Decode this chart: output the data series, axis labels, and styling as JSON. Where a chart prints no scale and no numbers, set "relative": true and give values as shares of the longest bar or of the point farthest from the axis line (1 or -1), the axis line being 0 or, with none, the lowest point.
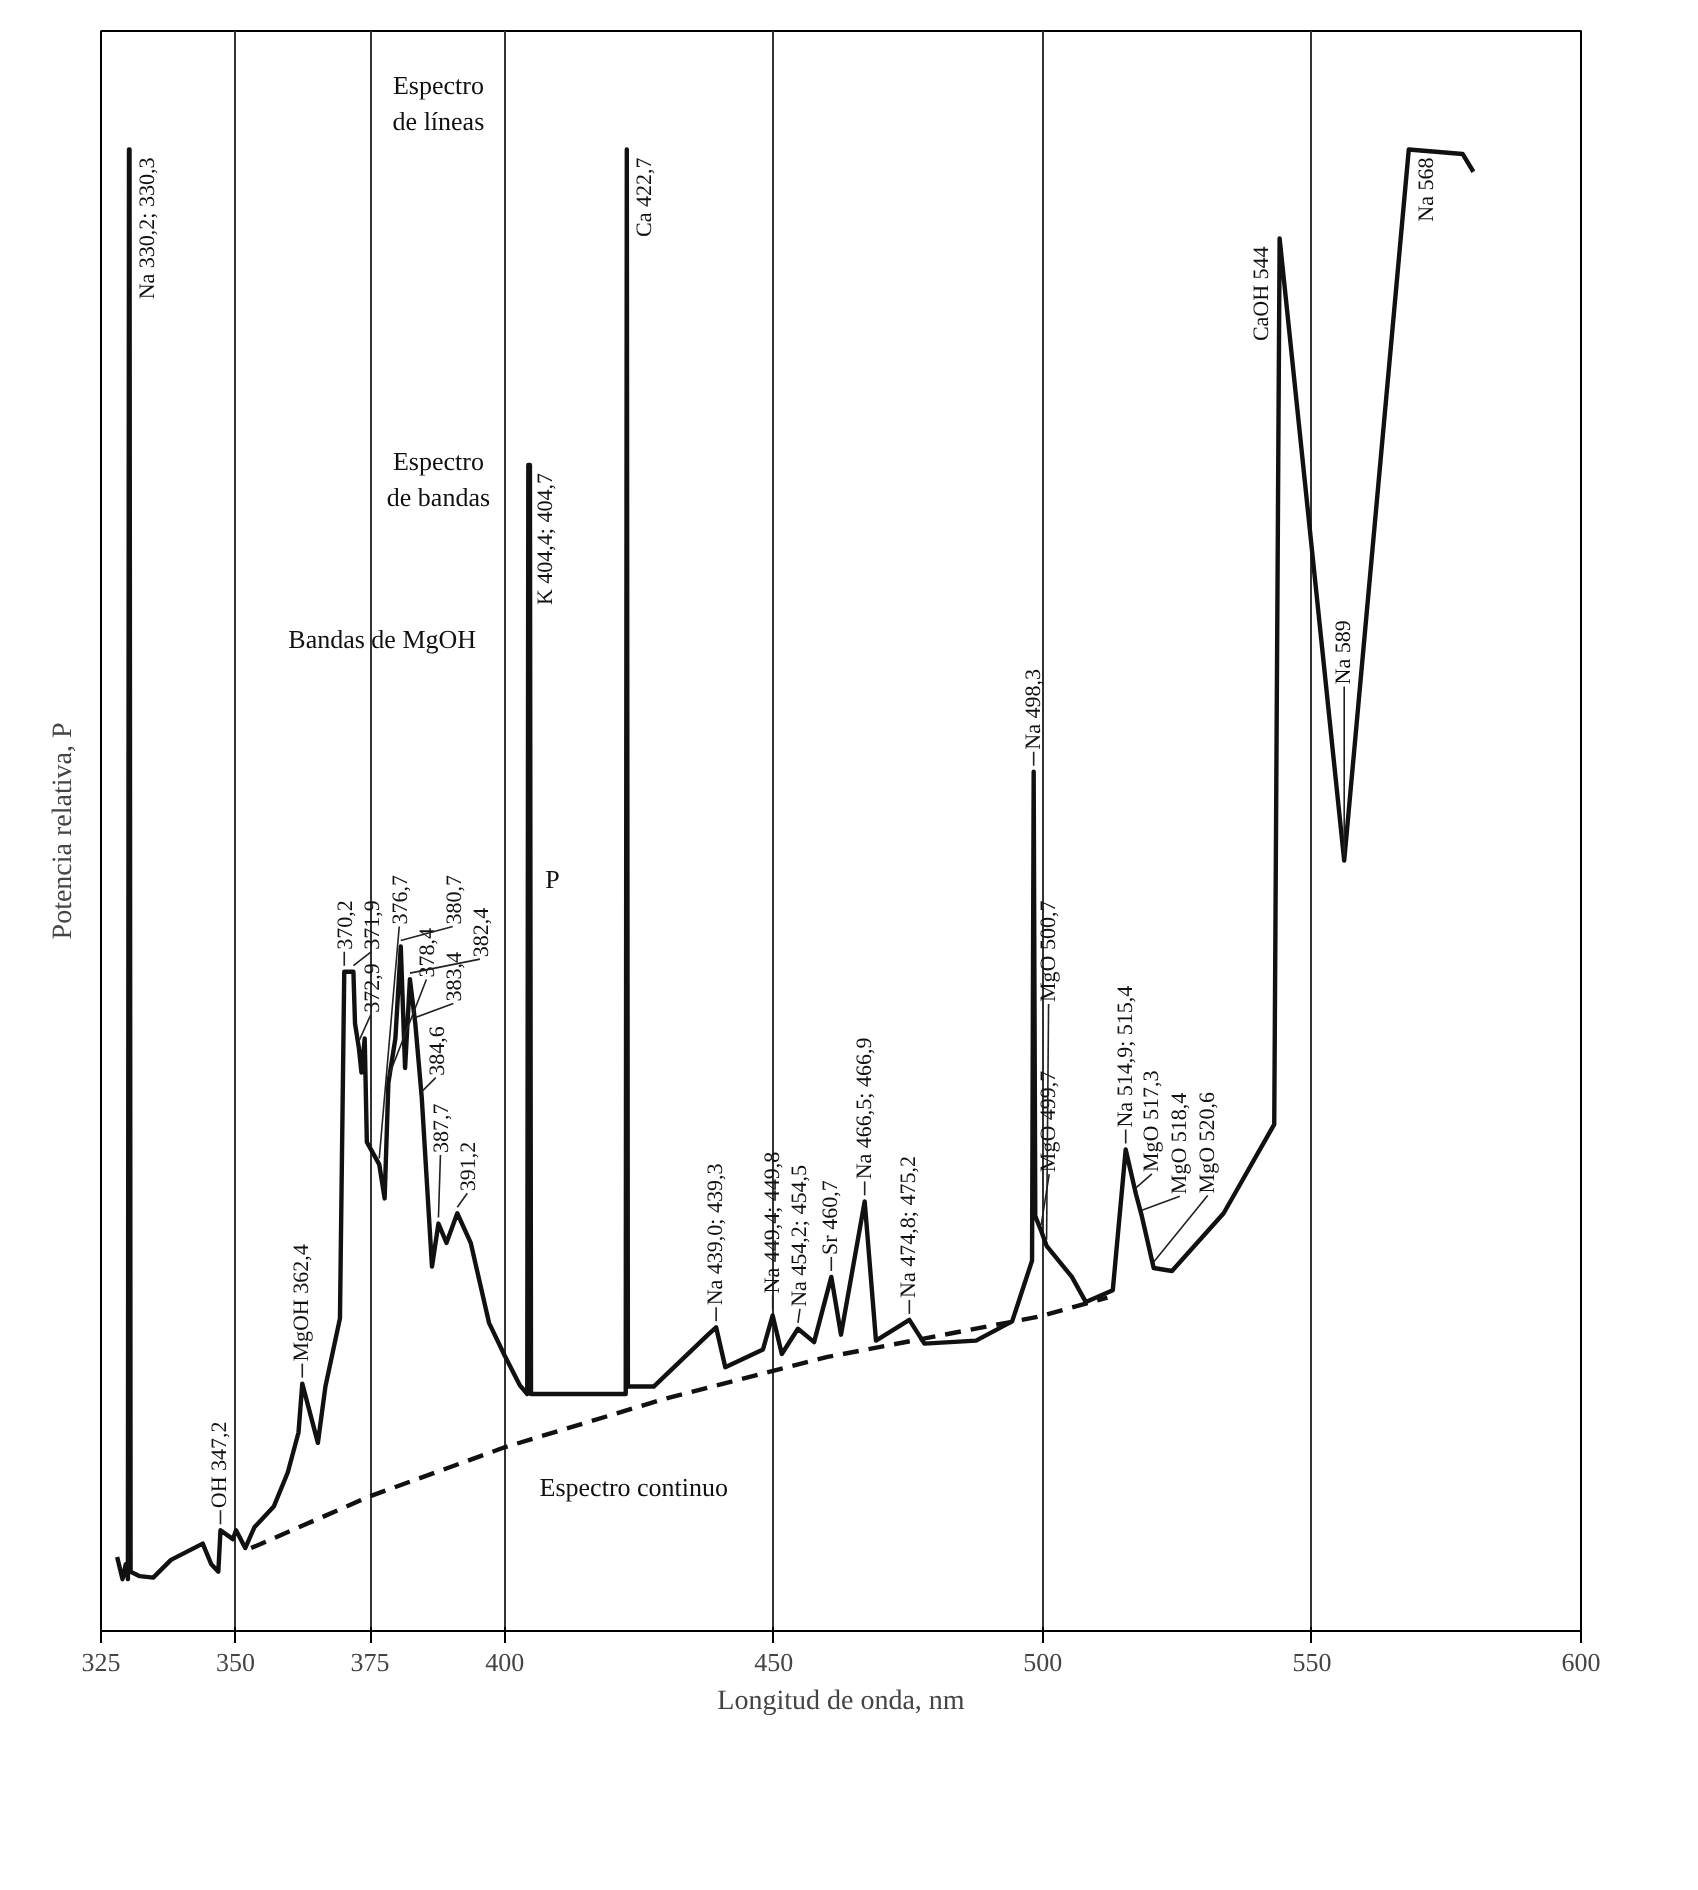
{
  "chart_data": {
    "type": "line",
    "relative": true,
    "xlabel": "Longitud de onda, nm",
    "ylabel": "Potencia relativa, P",
    "xlim": [
      325,
      600
    ],
    "xticks": [
      325,
      350,
      375,
      400,
      450,
      500,
      550,
      600
    ],
    "grid": "x",
    "tick_labels": "x",
    "marker": "none",
    "series": [
      {
        "color": "#111111",
        "line_style": "solid",
        "x": [
          328.0,
          329.0,
          329.6,
          330.0,
          330.2,
          330.3,
          330.5,
          332.2,
          334.7,
          338.0,
          343.9,
          345.5,
          346.8,
          347.2,
          349.5,
          350.1,
          351.8,
          353.5,
          357.1,
          359.7,
          361.7,
          362.4,
          365.3,
          366.7,
          369.4,
          370.2,
          371.9,
          372.2,
          372.9,
          373.4,
          374.0,
          374.4,
          376.7,
          377.7,
          378.4,
          379.7,
          380.7,
          381.5,
          382.4,
          383.4,
          384.6,
          386.5,
          387.7,
          389.2,
          391.2,
          393.7,
          397.1,
          400.0,
          402.8,
          404.2,
          404.4,
          404.7,
          404.9,
          422.5,
          422.7,
          422.9,
          427.7,
          437.8,
          439.3,
          441.0,
          448.0,
          449.8,
          451.5,
          454.5,
          457.5,
          460.7,
          462.5,
          466.9,
          469.0,
          475.2,
          478.0,
          487.6,
          494.3,
          498.0,
          498.3,
          498.6,
          499.7,
          500.7,
          505.4,
          508.0,
          513.0,
          515.4,
          517.3,
          518.4,
          520.6,
          524.0,
          533.6,
          543.0,
          544.0,
          556.0,
          568.0,
          578.0,
          580.0
        ],
        "values": [
          0.05,
          0.035,
          0.045,
          0.035,
          1.0,
          1.0,
          0.04,
          0.037,
          0.036,
          0.048,
          0.059,
          0.045,
          0.04,
          0.068,
          0.062,
          0.068,
          0.056,
          0.07,
          0.084,
          0.107,
          0.134,
          0.167,
          0.127,
          0.165,
          0.211,
          0.445,
          0.445,
          0.41,
          0.394,
          0.377,
          0.4,
          0.33,
          0.315,
          0.292,
          0.37,
          0.4,
          0.462,
          0.38,
          0.44,
          0.41,
          0.36,
          0.246,
          0.275,
          0.262,
          0.282,
          0.262,
          0.208,
          0.186,
          0.166,
          0.16,
          0.787,
          0.787,
          0.16,
          0.16,
          1.0,
          0.165,
          0.165,
          0.2,
          0.205,
          0.178,
          0.19,
          0.213,
          0.187,
          0.204,
          0.195,
          0.239,
          0.2,
          0.29,
          0.196,
          0.21,
          0.194,
          0.196,
          0.209,
          0.25,
          0.58,
          0.28,
          0.27,
          0.26,
          0.239,
          0.222,
          0.23,
          0.325,
          0.295,
          0.28,
          0.245,
          0.243,
          0.282,
          0.342,
          0.94,
          0.52,
          1.0,
          0.997,
          0.985
        ]
      },
      {
        "color": "#111111",
        "line_style": "dashed",
        "x": [
          352.9,
          375.0,
          400.0,
          430.0,
          460.0,
          499.0,
          512.0
        ],
        "values": [
          0.056,
          0.091,
          0.124,
          0.157,
          0.185,
          0.212,
          0.225
        ]
      }
    ],
    "annotations": [
      "Espectro\nde líneas",
      "Espectro\nde bandas",
      "Bandas de MgOH",
      "Espectro continuo",
      "P",
      {
        "text": "Na 330,2; 330,3",
        "x": 330.3,
        "y": 1.0
      },
      {
        "text": "OH 347,2",
        "x": 347.2,
        "y": 0.068
      },
      {
        "text": "MgOH 362,4",
        "x": 362.4,
        "y": 0.167
      },
      {
        "text": "370,2",
        "x": 370.2,
        "y": 0.445
      },
      {
        "text": "371,9",
        "x": 371.9,
        "y": 0.445
      },
      {
        "text": "372,9",
        "x": 372.9,
        "y": 0.394
      },
      {
        "text": "376,7",
        "x": 376.7,
        "y": 0.315
      },
      {
        "text": "378,4",
        "x": 378.4,
        "y": 0.37
      },
      {
        "text": "380,7",
        "x": 380.7,
        "y": 0.462
      },
      {
        "text": "382,4",
        "x": 382.4,
        "y": 0.44
      },
      {
        "text": "383,4",
        "x": 383.4,
        "y": 0.41
      },
      {
        "text": "384,6",
        "x": 384.6,
        "y": 0.36
      },
      {
        "text": "387,7",
        "x": 387.7,
        "y": 0.275
      },
      {
        "text": "391,2",
        "x": 391.2,
        "y": 0.282
      },
      {
        "text": "K 404,4; 404,7",
        "x": 404.4,
        "y": 0.787
      },
      {
        "text": "Ca 422,7",
        "x": 422.7,
        "y": 1.0
      },
      {
        "text": "Na 439,0; 439,3",
        "x": 439.3,
        "y": 0.205
      },
      {
        "text": "Na 449,4; 449,8",
        "x": 449.8,
        "y": 0.213
      },
      {
        "text": "Na 454,2; 454,5",
        "x": 454.5,
        "y": 0.204
      },
      {
        "text": "Sr 460,7",
        "x": 460.7,
        "y": 0.239
      },
      {
        "text": "Na 466,5; 466,9",
        "x": 466.9,
        "y": 0.29
      },
      {
        "text": "Na 474,8; 475,2",
        "x": 475.2,
        "y": 0.21
      },
      {
        "text": "Na 498,3",
        "x": 498.3,
        "y": 0.58
      },
      {
        "text": "MgO 499,7",
        "x": 499.7,
        "y": 0.27
      },
      {
        "text": "MgO 500,7",
        "x": 500.7,
        "y": 0.26
      },
      {
        "text": "Na 514,9; 515,4",
        "x": 515.4,
        "y": 0.325
      },
      {
        "text": "MgO 517,3",
        "x": 517.3,
        "y": 0.295
      },
      {
        "text": "MgO 518,4",
        "x": 518.4,
        "y": 0.28
      },
      {
        "text": "MgO 520,6",
        "x": 520.6,
        "y": 0.245
      },
      {
        "text": "CaOH 544",
        "x": 544.0,
        "y": 0.94
      },
      {
        "text": "Na 568",
        "x": 568.0,
        "y": 1.0
      },
      {
        "text": "Na 589",
        "x": 556.0,
        "y": 0.52
      }
    ]
  }
}
